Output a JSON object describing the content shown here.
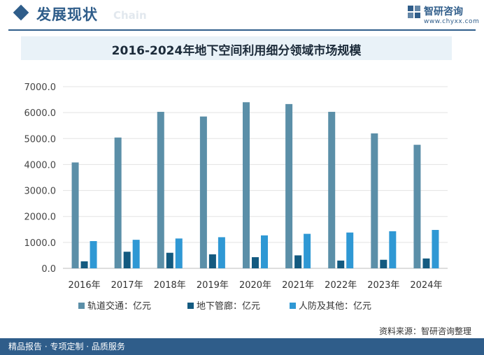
{
  "header": {
    "title": "发展现状",
    "subtitle_en": "Chain",
    "brand_name": "智研咨询",
    "brand_url": "www.chyxx.com"
  },
  "chart_data": {
    "type": "bar",
    "title": "2016-2024年地下空间利用细分领域市场规模",
    "categories": [
      "2016年",
      "2017年",
      "2018年",
      "2019年",
      "2020年",
      "2021年",
      "2022年",
      "2023年",
      "2024年"
    ],
    "series": [
      {
        "name": "轨道交通：亿元",
        "color": "#5b8fa8",
        "values": [
          4080,
          5040,
          6030,
          5850,
          6400,
          6330,
          6030,
          5200,
          4760
        ]
      },
      {
        "name": "地下管廊：亿元",
        "color": "#135a80",
        "values": [
          270,
          640,
          600,
          540,
          430,
          500,
          300,
          330,
          380
        ]
      },
      {
        "name": "人防及其他：亿元",
        "color": "#2f98d4",
        "values": [
          1050,
          1100,
          1150,
          1200,
          1270,
          1330,
          1380,
          1430,
          1480
        ]
      }
    ],
    "yticks": [
      "0.0",
      "1000.0",
      "2000.0",
      "3000.0",
      "4000.0",
      "5000.0",
      "6000.0",
      "7000.0"
    ],
    "ylim": [
      0,
      7000
    ],
    "grid": true,
    "legend_position": "bottom"
  },
  "footer": {
    "tagline": "精品报告 · 专项定制 · 品质服务",
    "source": "资料来源：智研咨询整理"
  }
}
